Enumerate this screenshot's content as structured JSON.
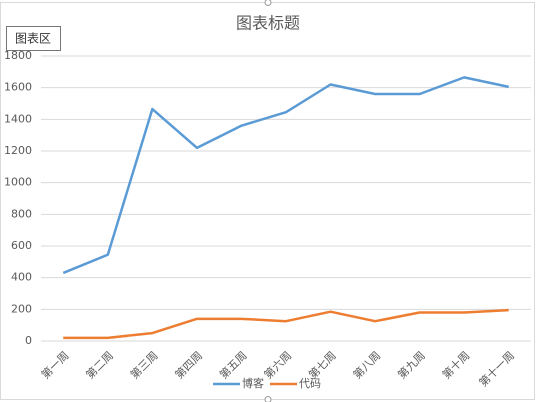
{
  "chart_data": {
    "type": "line",
    "title": "图表标题",
    "categories": [
      "第一周",
      "第二周",
      "第三周",
      "第四周",
      "第五周",
      "第六周",
      "第七周",
      "第八周",
      "第九周",
      "第十周",
      "第十一周"
    ],
    "series": [
      {
        "name": "博客",
        "color": "#5b9bd5",
        "values": [
          430,
          545,
          1465,
          1220,
          1360,
          1445,
          1620,
          1560,
          1560,
          1665,
          1605
        ]
      },
      {
        "name": "代码",
        "color": "#ed7d31",
        "values": [
          20,
          20,
          50,
          140,
          140,
          125,
          185,
          125,
          180,
          180,
          195
        ]
      }
    ],
    "ylim": [
      0,
      1800
    ],
    "yticks": [
      0,
      200,
      400,
      600,
      800,
      1000,
      1200,
      1400,
      1600,
      1800
    ],
    "grid": true,
    "legend": "bottom"
  },
  "tooltip": "图表区"
}
